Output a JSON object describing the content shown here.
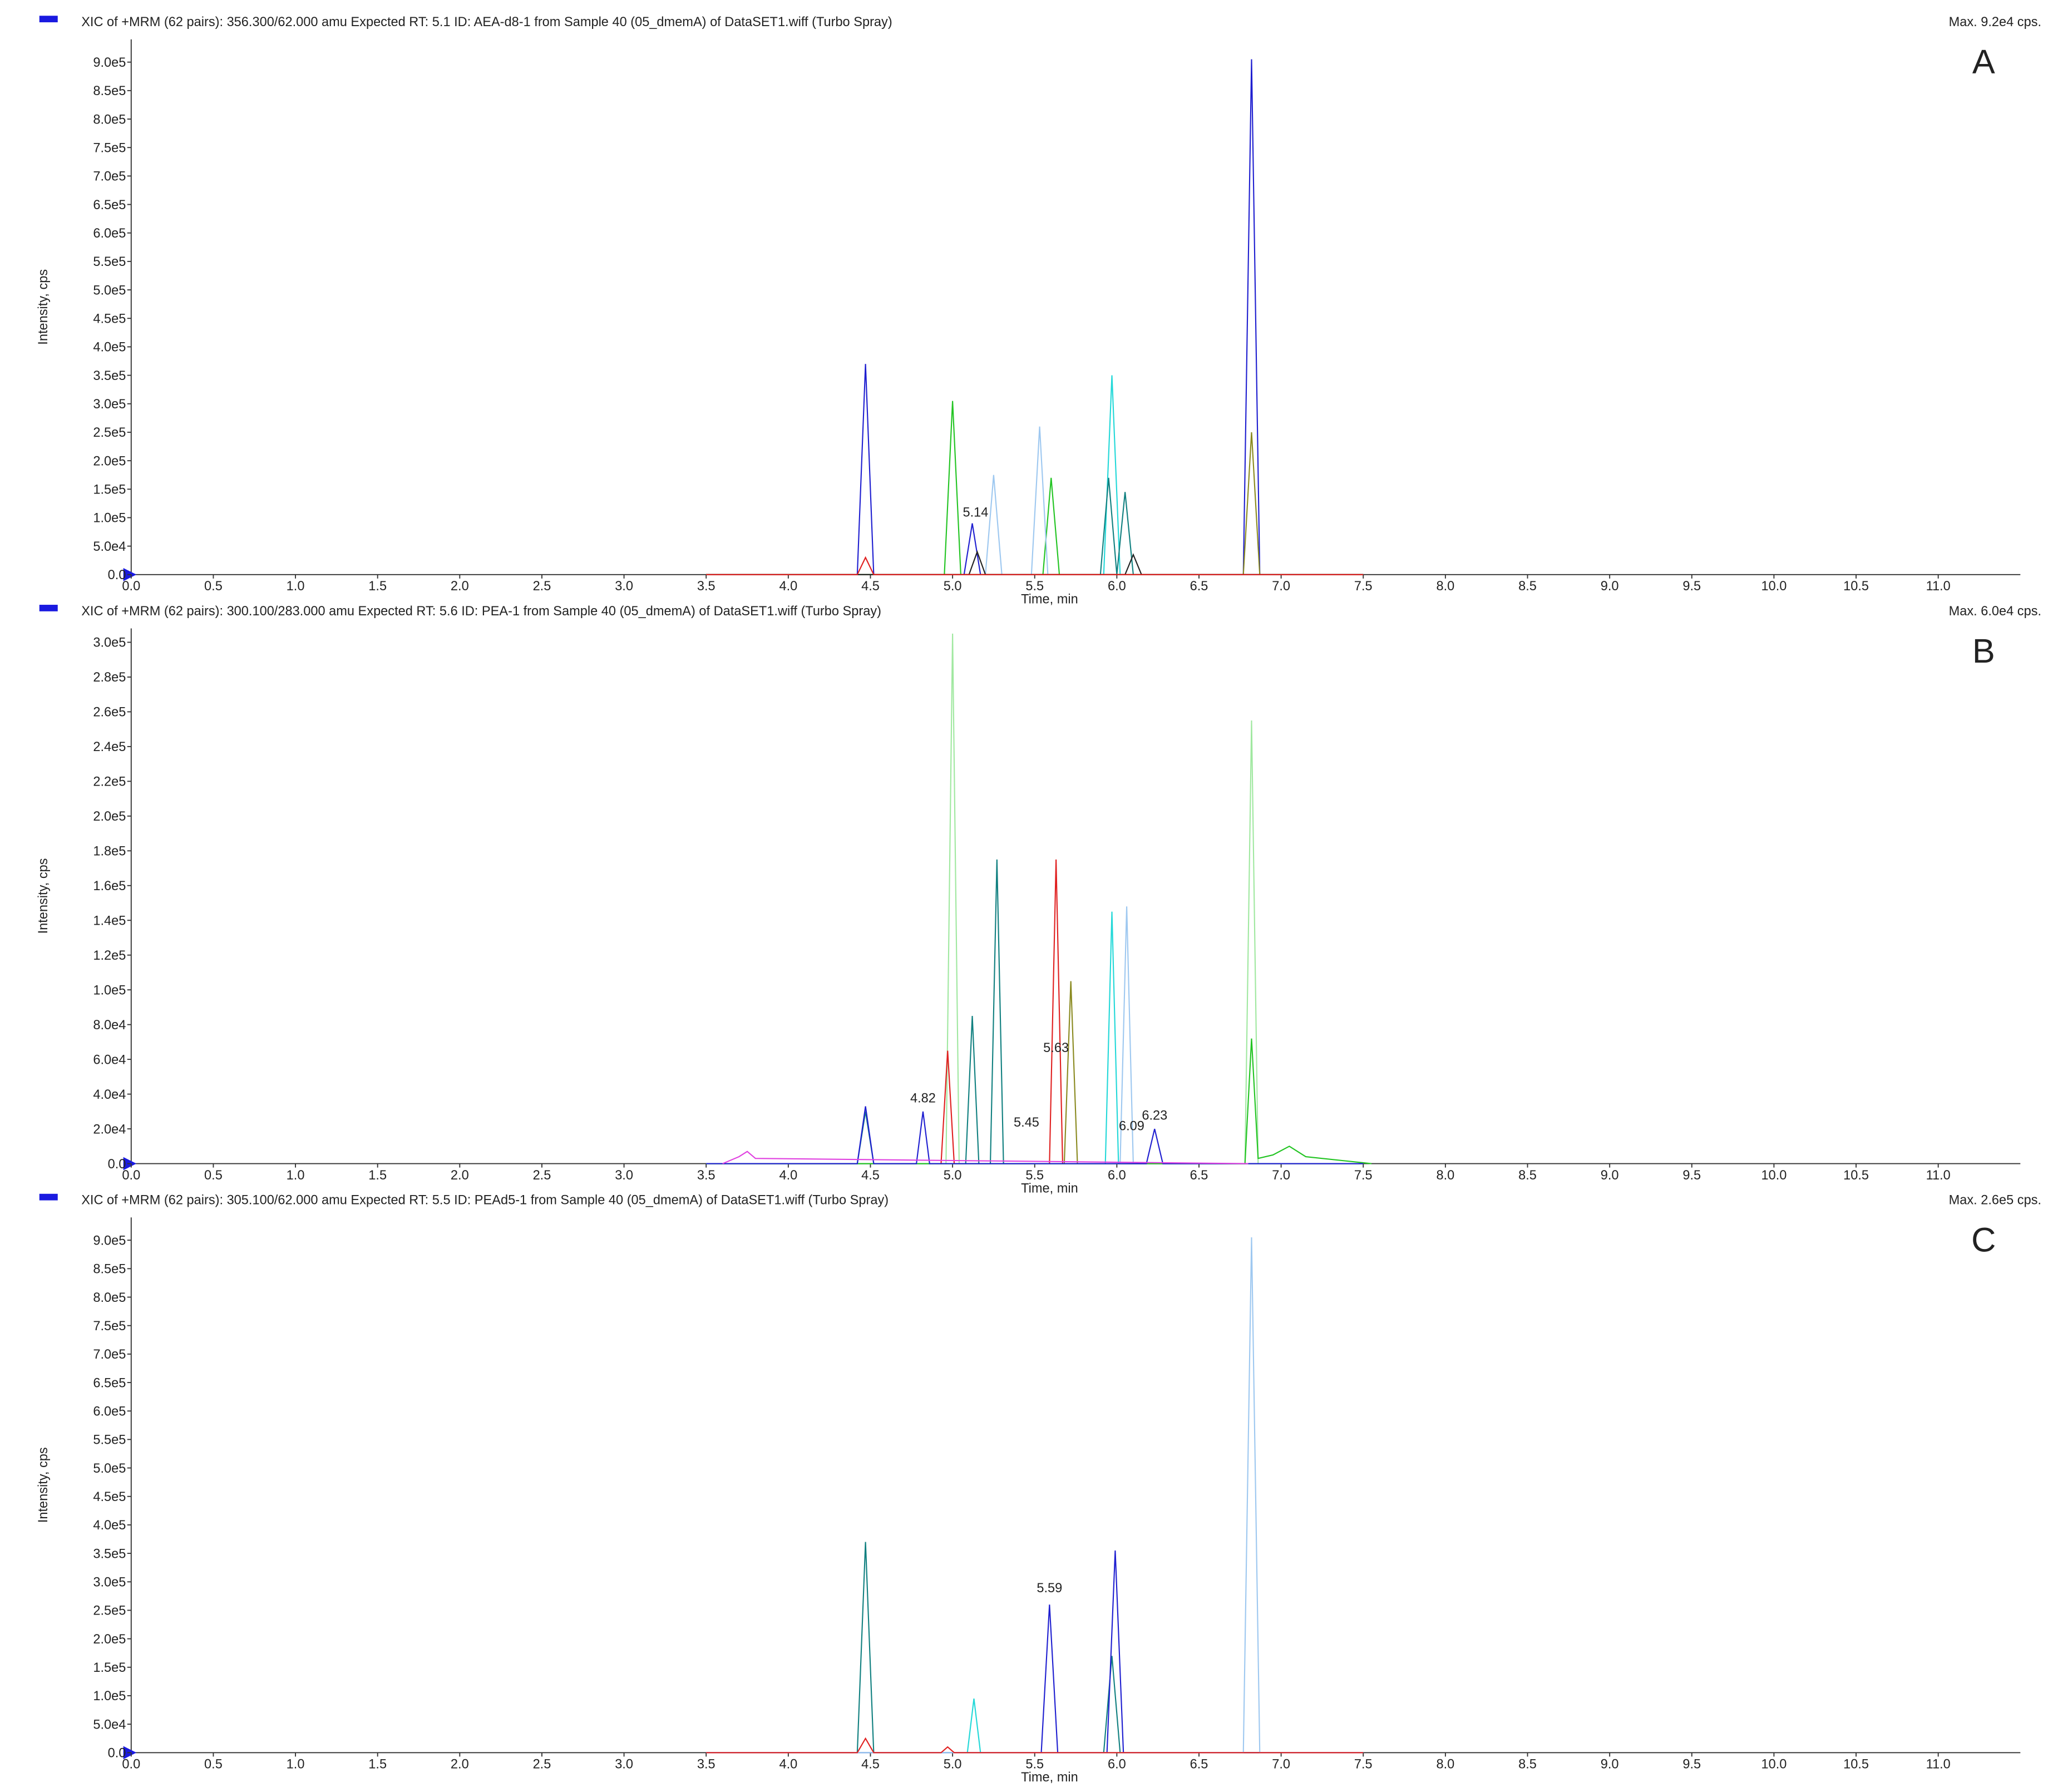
{
  "chart_data": [
    {
      "type": "line",
      "title": "XIC of +MRM (62 pairs): 356.300/62.000 amu Expected RT: 5.1 ID: AEA-d8-1 from Sample 40 (05_dmemA) of DataSET1.wiff (Turbo Spray)",
      "max_label": "Max. 9.2e4 cps.",
      "panel_label": "A",
      "xlabel": "Time, min",
      "ylabel": "Intensity, cps",
      "xlim": [
        0,
        11.5
      ],
      "ylim": [
        0,
        940000
      ],
      "xticks": [
        {
          "value": 0,
          "label": "0.0"
        },
        0.5,
        {
          "value": 1,
          "label": "1.0"
        },
        1.5,
        {
          "value": 2,
          "label": "2.0"
        },
        2.5,
        {
          "value": 3,
          "label": "3.0"
        },
        3.5,
        {
          "value": 4,
          "label": "4.0"
        },
        4.5,
        {
          "value": 5,
          "label": "5.0"
        },
        5.5,
        {
          "value": 6,
          "label": "6.0"
        },
        6.5,
        {
          "value": 7,
          "label": "7.0"
        },
        7.5,
        {
          "value": 8,
          "label": "8.0"
        },
        8.5,
        {
          "value": 9,
          "label": "9.0"
        },
        9.5,
        {
          "value": 10,
          "label": "10.0"
        },
        10.5,
        {
          "value": 11,
          "label": "11.0"
        }
      ],
      "yticks": [
        {
          "value": 0,
          "label": "0.0"
        },
        {
          "value": 50000,
          "label": "5.0e4"
        },
        {
          "value": 100000,
          "label": "1.0e5"
        },
        {
          "value": 150000,
          "label": "1.5e5"
        },
        {
          "value": 200000,
          "label": "2.0e5"
        },
        {
          "value": 250000,
          "label": "2.5e5"
        },
        {
          "value": 300000,
          "label": "3.0e5"
        },
        {
          "value": 350000,
          "label": "3.5e5"
        },
        {
          "value": 400000,
          "label": "4.0e5"
        },
        {
          "value": 450000,
          "label": "4.5e5"
        },
        {
          "value": 500000,
          "label": "5.0e5"
        },
        {
          "value": 550000,
          "label": "5.5e5"
        },
        {
          "value": 600000,
          "label": "6.0e5"
        },
        {
          "value": 650000,
          "label": "6.5e5"
        },
        {
          "value": 700000,
          "label": "7.0e5"
        },
        {
          "value": 750000,
          "label": "7.5e5"
        },
        {
          "value": 800000,
          "label": "8.0e5"
        },
        {
          "value": 850000,
          "label": "8.5e5"
        },
        {
          "value": 900000,
          "label": "9.0e5"
        }
      ],
      "series": [
        {
          "color": "#1f1fd0",
          "x": [
            3.5,
            4.42,
            4.47,
            4.52,
            5.07,
            5.12,
            5.17,
            6.77,
            6.82,
            6.87,
            7.5
          ],
          "values": [
            0,
            0,
            370000,
            0,
            0,
            90000,
            0,
            0,
            905000,
            0,
            0
          ]
        },
        {
          "color": "#22c422",
          "x": [
            3.5,
            4.95,
            5.0,
            5.05,
            5.55,
            5.6,
            5.65,
            7.5
          ],
          "values": [
            0,
            0,
            305000,
            0,
            0,
            170000,
            0,
            0
          ]
        },
        {
          "color": "#22d8d8",
          "x": [
            3.5,
            5.92,
            5.97,
            6.02,
            7.5
          ],
          "values": [
            0,
            0,
            350000,
            0,
            0
          ]
        },
        {
          "color": "#9ec8f0",
          "x": [
            3.5,
            5.2,
            5.25,
            5.3,
            5.48,
            5.53,
            5.58,
            7.5
          ],
          "values": [
            0,
            0,
            175000,
            0,
            0,
            260000,
            0,
            0
          ]
        },
        {
          "color": "#118080",
          "x": [
            3.5,
            5.9,
            5.95,
            6.0,
            6.05,
            6.1,
            7.5
          ],
          "values": [
            0,
            0,
            170000,
            0,
            145000,
            0,
            0
          ]
        },
        {
          "color": "#8a8a20",
          "x": [
            3.5,
            6.77,
            6.82,
            6.87,
            7.5
          ],
          "values": [
            0,
            0,
            250000,
            0,
            0
          ]
        },
        {
          "color": "#222222",
          "x": [
            3.5,
            5.1,
            5.15,
            5.2,
            6.05,
            6.1,
            6.15,
            7.5
          ],
          "values": [
            0,
            0,
            40000,
            0,
            0,
            35000,
            0,
            0
          ]
        },
        {
          "color": "#e02020",
          "x": [
            3.5,
            4.42,
            4.47,
            4.52,
            7.5
          ],
          "values": [
            0,
            0,
            30000,
            0,
            0
          ]
        }
      ],
      "annotations": [
        {
          "text": "5.14",
          "x": 5.14,
          "y": 95000
        }
      ]
    },
    {
      "type": "line",
      "title": "XIC of +MRM (62 pairs): 300.100/283.000 amu Expected RT: 5.6 ID: PEA-1 from Sample 40 (05_dmemA) of DataSET1.wiff (Turbo Spray)",
      "max_label": "Max. 6.0e4 cps.",
      "panel_label": "B",
      "xlabel": "Time, min",
      "ylabel": "Intensity, cps",
      "xlim": [
        0,
        11.5
      ],
      "ylim": [
        0,
        308000
      ],
      "xticks": [
        {
          "value": 0,
          "label": "0.0"
        },
        0.5,
        {
          "value": 1,
          "label": "1.0"
        },
        1.5,
        {
          "value": 2,
          "label": "2.0"
        },
        2.5,
        {
          "value": 3,
          "label": "3.0"
        },
        3.5,
        {
          "value": 4,
          "label": "4.0"
        },
        4.5,
        {
          "value": 5,
          "label": "5.0"
        },
        5.5,
        {
          "value": 6,
          "label": "6.0"
        },
        6.5,
        {
          "value": 7,
          "label": "7.0"
        },
        7.5,
        {
          "value": 8,
          "label": "8.0"
        },
        8.5,
        {
          "value": 9,
          "label": "9.0"
        },
        9.5,
        {
          "value": 10,
          "label": "10.0"
        },
        10.5,
        {
          "value": 11,
          "label": "11.0"
        }
      ],
      "yticks": [
        {
          "value": 0,
          "label": "0.0"
        },
        {
          "value": 20000,
          "label": "2.0e4"
        },
        {
          "value": 40000,
          "label": "4.0e4"
        },
        {
          "value": 60000,
          "label": "6.0e4"
        },
        {
          "value": 80000,
          "label": "8.0e4"
        },
        {
          "value": 100000,
          "label": "1.0e5"
        },
        {
          "value": 120000,
          "label": "1.2e5"
        },
        {
          "value": 140000,
          "label": "1.4e5"
        },
        {
          "value": 160000,
          "label": "1.6e5"
        },
        {
          "value": 180000,
          "label": "1.8e5"
        },
        {
          "value": 200000,
          "label": "2.0e5"
        },
        {
          "value": 220000,
          "label": "2.2e5"
        },
        {
          "value": 240000,
          "label": "2.4e5"
        },
        {
          "value": 260000,
          "label": "2.6e5"
        },
        {
          "value": 280000,
          "label": "2.8e5"
        },
        {
          "value": 300000,
          "label": "3.0e5"
        }
      ],
      "series": [
        {
          "color": "#a0e8a0",
          "x": [
            3.5,
            4.96,
            5.0,
            5.04,
            6.78,
            6.82,
            6.86,
            7.5
          ],
          "values": [
            0,
            0,
            305000,
            0,
            0,
            255000,
            0,
            0
          ]
        },
        {
          "color": "#118080",
          "x": [
            3.5,
            4.42,
            4.47,
            4.52,
            5.08,
            5.12,
            5.16,
            5.23,
            5.27,
            5.31,
            7.5
          ],
          "values": [
            0,
            0,
            30000,
            0,
            0,
            85000,
            0,
            0,
            175000,
            0,
            0
          ]
        },
        {
          "color": "#e02020",
          "x": [
            3.5,
            4.93,
            4.97,
            5.01,
            5.59,
            5.63,
            5.67,
            7.5
          ],
          "values": [
            0,
            0,
            65000,
            0,
            0,
            175000,
            0,
            0
          ]
        },
        {
          "color": "#8a8a20",
          "x": [
            3.5,
            5.68,
            5.72,
            5.76,
            7.5
          ],
          "values": [
            0,
            0,
            105000,
            0,
            0
          ]
        },
        {
          "color": "#22d8d8",
          "x": [
            3.5,
            5.93,
            5.97,
            6.01,
            7.5
          ],
          "values": [
            0,
            0,
            145000,
            0,
            0
          ]
        },
        {
          "color": "#9ec8f0",
          "x": [
            3.5,
            6.02,
            6.06,
            6.1,
            7.5
          ],
          "values": [
            0,
            0,
            148000,
            0,
            0
          ]
        },
        {
          "color": "#22c422",
          "x": [
            3.5,
            6.78,
            6.82,
            6.86,
            6.95,
            7.05,
            7.15,
            7.55
          ],
          "values": [
            0,
            0,
            72000,
            3000,
            5000,
            10000,
            4000,
            0
          ]
        },
        {
          "color": "#1f1fd0",
          "x": [
            3.5,
            4.42,
            4.47,
            4.52,
            4.78,
            4.82,
            4.86,
            6.18,
            6.23,
            6.28,
            7.5
          ],
          "values": [
            0,
            0,
            33000,
            0,
            0,
            30000,
            0,
            0,
            20000,
            0,
            0
          ]
        },
        {
          "color": "#e040e0",
          "x": [
            3.6,
            3.7,
            3.75,
            3.8,
            6.8
          ],
          "values": [
            0,
            4000,
            7000,
            3000,
            0
          ]
        }
      ],
      "annotations": [
        {
          "text": "4.82",
          "x": 4.82,
          "y": 33000
        },
        {
          "text": "5.45",
          "x": 5.45,
          "y": 19000
        },
        {
          "text": "5.63",
          "x": 5.63,
          "y": 62000
        },
        {
          "text": "6.09",
          "x": 6.09,
          "y": 17000
        },
        {
          "text": "6.23",
          "x": 6.23,
          "y": 23000
        }
      ]
    },
    {
      "type": "line",
      "title": "XIC of +MRM (62 pairs): 305.100/62.000 amu Expected RT: 5.5 ID: PEAd5-1 from Sample 40 (05_dmemA) of DataSET1.wiff (Turbo Spray)",
      "max_label": "Max. 2.6e5 cps.",
      "panel_label": "C",
      "xlabel": "Time, min",
      "ylabel": "Intensity, cps",
      "xlim": [
        0,
        11.5
      ],
      "ylim": [
        0,
        940000
      ],
      "xticks": [
        {
          "value": 0,
          "label": "0.0"
        },
        0.5,
        {
          "value": 1,
          "label": "1.0"
        },
        1.5,
        {
          "value": 2,
          "label": "2.0"
        },
        2.5,
        {
          "value": 3,
          "label": "3.0"
        },
        3.5,
        {
          "value": 4,
          "label": "4.0"
        },
        4.5,
        {
          "value": 5,
          "label": "5.0"
        },
        5.5,
        {
          "value": 6,
          "label": "6.0"
        },
        6.5,
        {
          "value": 7,
          "label": "7.0"
        },
        7.5,
        {
          "value": 8,
          "label": "8.0"
        },
        8.5,
        {
          "value": 9,
          "label": "9.0"
        },
        9.5,
        {
          "value": 10,
          "label": "10.0"
        },
        10.5,
        {
          "value": 11,
          "label": "11.0"
        }
      ],
      "yticks": [
        {
          "value": 0,
          "label": "0.0"
        },
        {
          "value": 50000,
          "label": "5.0e4"
        },
        {
          "value": 100000,
          "label": "1.0e5"
        },
        {
          "value": 150000,
          "label": "1.5e5"
        },
        {
          "value": 200000,
          "label": "2.0e5"
        },
        {
          "value": 250000,
          "label": "2.5e5"
        },
        {
          "value": 300000,
          "label": "3.0e5"
        },
        {
          "value": 350000,
          "label": "3.5e5"
        },
        {
          "value": 400000,
          "label": "4.0e5"
        },
        {
          "value": 450000,
          "label": "4.5e5"
        },
        {
          "value": 500000,
          "label": "5.0e5"
        },
        {
          "value": 550000,
          "label": "5.5e5"
        },
        {
          "value": 600000,
          "label": "6.0e5"
        },
        {
          "value": 650000,
          "label": "6.5e5"
        },
        {
          "value": 700000,
          "label": "7.0e5"
        },
        {
          "value": 750000,
          "label": "7.5e5"
        },
        {
          "value": 800000,
          "label": "8.0e5"
        },
        {
          "value": 850000,
          "label": "8.5e5"
        },
        {
          "value": 900000,
          "label": "9.0e5"
        }
      ],
      "series": [
        {
          "color": "#118080",
          "x": [
            3.5,
            4.42,
            4.47,
            4.52,
            5.92,
            5.97,
            6.02,
            7.5
          ],
          "values": [
            0,
            0,
            370000,
            0,
            0,
            170000,
            0,
            0
          ]
        },
        {
          "color": "#22d8d8",
          "x": [
            3.5,
            5.09,
            5.13,
            5.17,
            7.5
          ],
          "values": [
            0,
            0,
            95000,
            0,
            0
          ]
        },
        {
          "color": "#1f1fd0",
          "x": [
            3.5,
            5.54,
            5.59,
            5.64,
            5.94,
            5.99,
            6.04,
            7.5
          ],
          "values": [
            0,
            0,
            260000,
            0,
            0,
            355000,
            0,
            0
          ]
        },
        {
          "color": "#9ec8f0",
          "x": [
            3.5,
            6.77,
            6.82,
            6.87,
            7.5
          ],
          "values": [
            0,
            0,
            905000,
            0,
            0
          ]
        },
        {
          "color": "#e02020",
          "x": [
            3.5,
            4.42,
            4.47,
            4.52,
            4.93,
            4.97,
            5.01,
            7.5
          ],
          "values": [
            0,
            0,
            25000,
            0,
            0,
            10000,
            0,
            0
          ]
        }
      ],
      "annotations": [
        {
          "text": "5.59",
          "x": 5.59,
          "y": 275000
        }
      ]
    }
  ]
}
